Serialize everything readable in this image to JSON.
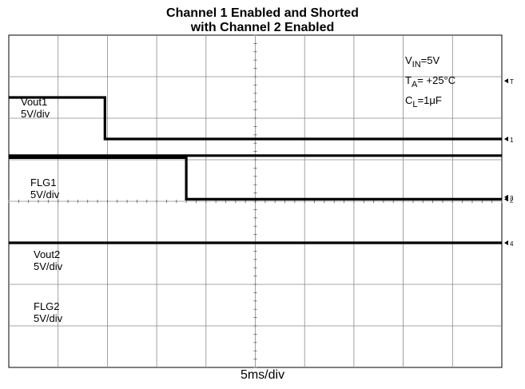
{
  "chart_data": {
    "type": "line",
    "title": "Channel 1 Enabled and Shorted",
    "subtitle": "with Channel 2 Enabled",
    "xlabel": "5ms/div",
    "divisions": {
      "x": 10,
      "y": 8
    },
    "conditions": [
      {
        "id": "vin",
        "main": "V",
        "sub": "IN",
        "rest": "=5V"
      },
      {
        "id": "ta",
        "main": "T",
        "sub": "A",
        "rest": "= +25°C"
      },
      {
        "id": "cl",
        "main": "C",
        "sub": "L",
        "rest": "=1μF"
      }
    ],
    "series": [
      {
        "name": "Vout1",
        "scale": "5V/div",
        "ground_div": 2.5,
        "x": [
          0,
          1.95,
          1.95,
          10
        ],
        "y": [
          1,
          1,
          0,
          0
        ]
      },
      {
        "name": "FLG1",
        "scale": "5V/div",
        "ground_div": 3.95,
        "x": [
          0,
          3.6,
          3.6,
          10
        ],
        "y": [
          1,
          1,
          0,
          0
        ]
      },
      {
        "name": "Vout2",
        "scale": "5V/div",
        "ground_div": 3.9,
        "x": [
          0,
          10
        ],
        "y": [
          1,
          1
        ]
      },
      {
        "name": "FLG2",
        "scale": "5V/div",
        "ground_div": 5.0,
        "x": [
          0,
          10
        ],
        "y": [
          0,
          0
        ]
      }
    ]
  }
}
